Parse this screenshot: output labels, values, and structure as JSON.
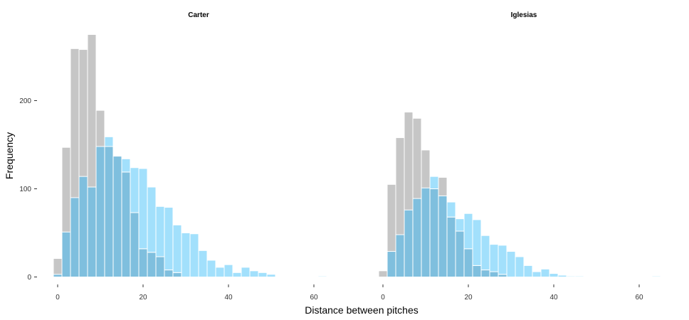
{
  "chart_data": {
    "type": "bar",
    "xlabel": "Distance between pitches",
    "ylabel": "Frequency",
    "xlim": [
      -2,
      65
    ],
    "ylim": [
      0,
      275
    ],
    "xticks": [
      0,
      20,
      40,
      60
    ],
    "yticks": [
      0,
      100,
      200
    ],
    "bin_width": 2,
    "grid": false,
    "colors": {
      "gray": "#c6c6c6",
      "blue": "#a2e0fc",
      "overlap": "#7fbfde"
    },
    "panels": [
      {
        "title": "Carter",
        "series": [
          {
            "bin_centers": [
              0,
              2,
              4,
              6,
              8,
              10,
              12,
              14,
              16,
              18,
              20,
              22,
              24,
              26,
              28,
              30,
              32,
              34,
              36,
              38,
              40,
              42,
              44,
              46,
              48,
              50,
              52,
              54,
              56,
              58,
              60,
              62
            ],
            "values": [
              21,
              147,
              259,
              258,
              275,
              189,
              148,
              137,
              119,
              73,
              32,
              28,
              23,
              8,
              5,
              0,
              0,
              0,
              0,
              0,
              0,
              0,
              0,
              0,
              0,
              0,
              0,
              0,
              0,
              0,
              0,
              0
            ]
          },
          {
            "bin_centers": [
              0,
              2,
              4,
              6,
              8,
              10,
              12,
              14,
              16,
              18,
              20,
              22,
              24,
              26,
              28,
              30,
              32,
              34,
              36,
              38,
              40,
              42,
              44,
              46,
              48,
              50,
              52,
              54,
              56,
              58,
              60,
              62
            ],
            "values": [
              3,
              51,
              90,
              114,
              102,
              148,
              159,
              137,
              134,
              124,
              123,
              102,
              80,
              79,
              59,
              50,
              49,
              30,
              19,
              11,
              14,
              5,
              11,
              7,
              5,
              3,
              0,
              0,
              0,
              0,
              0,
              1
            ]
          }
        ]
      },
      {
        "title": "Iglesias",
        "series": [
          {
            "bin_centers": [
              0,
              2,
              4,
              6,
              8,
              10,
              12,
              14,
              16,
              18,
              20,
              22,
              24,
              26,
              28,
              30,
              32,
              34,
              36,
              38,
              40,
              42,
              44,
              46,
              48,
              50,
              52,
              54,
              56,
              58,
              60,
              62,
              64
            ],
            "values": [
              7,
              105,
              158,
              187,
              180,
              144,
              100,
              113,
              68,
              52,
              32,
              13,
              8,
              6,
              3,
              0,
              0,
              0,
              0,
              0,
              0,
              0,
              0,
              0,
              0,
              0,
              0,
              0,
              0,
              0,
              0,
              0,
              0
            ]
          },
          {
            "bin_centers": [
              0,
              2,
              4,
              6,
              8,
              10,
              12,
              14,
              16,
              18,
              20,
              22,
              24,
              26,
              28,
              30,
              32,
              34,
              36,
              38,
              40,
              42,
              44,
              46,
              48,
              50,
              52,
              54,
              56,
              58,
              60,
              62,
              64
            ],
            "values": [
              0,
              29,
              48,
              76,
              89,
              101,
              114,
              92,
              85,
              66,
              72,
              65,
              47,
              37,
              36,
              29,
              23,
              13,
              6,
              9,
              4,
              2,
              1,
              1,
              0,
              0,
              0,
              0,
              0,
              0,
              0,
              0,
              1
            ]
          }
        ]
      }
    ]
  }
}
